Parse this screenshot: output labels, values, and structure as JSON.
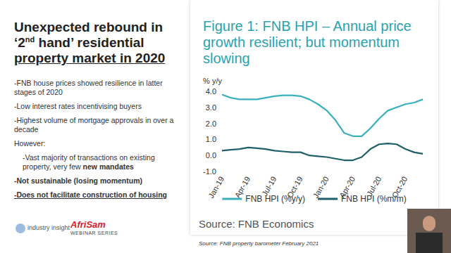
{
  "slide": {
    "title": [
      {
        "text": "Unexpected rebound in ‘2"
      },
      {
        "text": "nd",
        "sup": true
      },
      {
        "text": " hand’ residential "
      },
      {
        "text": "property market in 2020",
        "underline": true
      }
    ],
    "bullets": [
      {
        "parts": [
          {
            "text": "-FNB house prices showed resilience in latter stages of 2020"
          }
        ]
      },
      {
        "parts": [
          {
            "text": "-Low interest rates incentivising buyers"
          }
        ]
      },
      {
        "parts": [
          {
            "text": "-Highest volume of mortgage approvals in over a decade"
          }
        ]
      },
      {
        "parts": [
          {
            "text": "However:"
          }
        ]
      },
      {
        "indent": true,
        "parts": [
          {
            "text": "-Vast majority of transactions on existing property, very few "
          },
          {
            "text": "new mandates",
            "bold": true
          }
        ]
      },
      {
        "parts": [
          {
            "text": "-Not sustainable (losing momentum)",
            "bold": true
          }
        ]
      },
      {
        "parts": [
          {
            "text": "-Does not facilitate construction of housing",
            "bold": true,
            "underline": true
          }
        ]
      }
    ],
    "source": "Source: FNB property barometer February 2021",
    "logos": {
      "left": "industry insight",
      "brand": "AfriSam",
      "series": "WEBINAR SERIES"
    }
  },
  "chart_data": {
    "type": "line",
    "title": "Figure 1: FNB HPI – Annual price growth resilient; but momentum slowing",
    "y_label": "% y/y",
    "source": "Source: FNB Economics",
    "categories": [
      "Jan-19",
      null,
      null,
      "Apr-19",
      null,
      null,
      "Jul-19",
      null,
      null,
      "Oct-19",
      null,
      null,
      "Jan-20",
      null,
      null,
      "Apr-20",
      null,
      null,
      "Jul-20",
      null,
      null,
      "Oct-20",
      null,
      null
    ],
    "series": [
      {
        "name": "FNB HPI (%y/y)",
        "color": "#3ab0bf",
        "values": [
          3.8,
          3.6,
          3.5,
          3.5,
          3.5,
          3.6,
          3.7,
          3.75,
          3.75,
          3.7,
          3.5,
          3.2,
          2.8,
          2.2,
          1.4,
          1.2,
          1.2,
          1.7,
          2.3,
          2.8,
          3.0,
          3.2,
          3.3,
          3.5
        ]
      },
      {
        "name": "FNB HPI (%m/m)",
        "color": "#1f5f6a",
        "values": [
          0.3,
          0.35,
          0.4,
          0.5,
          0.45,
          0.4,
          0.3,
          0.25,
          0.2,
          0.2,
          0.0,
          -0.05,
          -0.1,
          -0.2,
          -0.3,
          -0.3,
          -0.1,
          0.4,
          0.7,
          0.75,
          0.7,
          0.4,
          0.2,
          0.1
        ]
      }
    ],
    "ylim": [
      -1,
      4
    ],
    "yticks": [
      {
        "value": -1,
        "label": "-1.0"
      },
      {
        "value": 0,
        "label": "0.0"
      },
      {
        "value": 1,
        "label": "1.0"
      },
      {
        "value": 2,
        "label": "2.0"
      },
      {
        "value": 3,
        "label": "3.0"
      },
      {
        "value": 4,
        "label": "4.0"
      }
    ],
    "grid": false,
    "legend": "bottom"
  }
}
